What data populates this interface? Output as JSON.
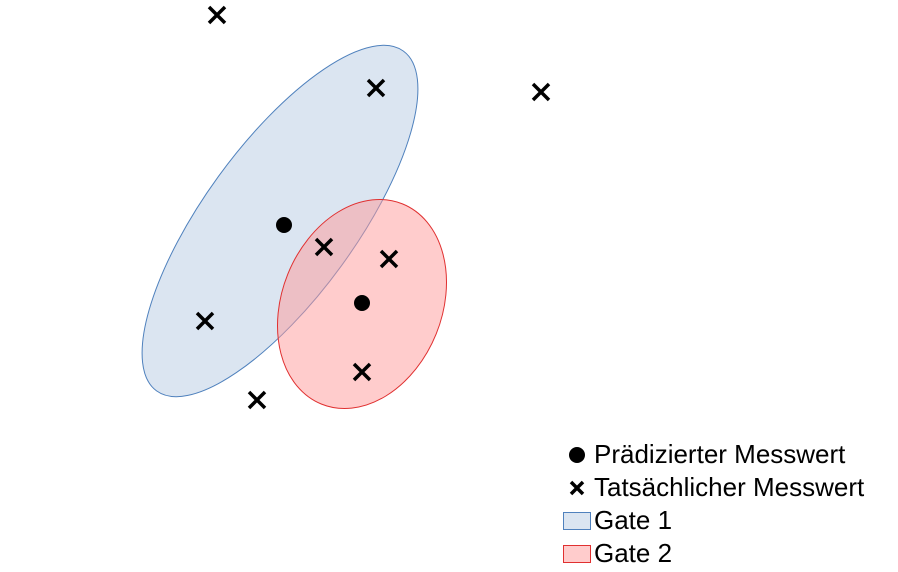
{
  "legend": {
    "predicted": "Prädizierter Messwert",
    "actual": "Tatsächlicher Messwert",
    "gate1": "Gate 1",
    "gate2": "Gate 2"
  },
  "colors": {
    "gate1_fill": "#b8cce4",
    "gate1_stroke": "#4f81bd",
    "gate2_fill": "#ff9999",
    "gate2_stroke": "#e03030",
    "marker": "#000000"
  },
  "icons": {
    "predicted_marker": "filled-circle",
    "actual_marker": "x-cross",
    "gate_swatch": "filled-rectangle"
  }
}
